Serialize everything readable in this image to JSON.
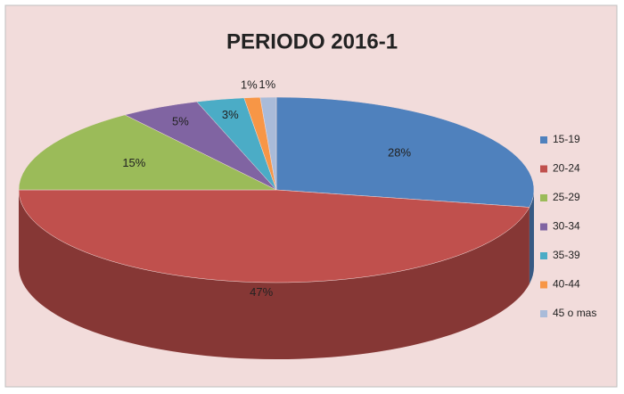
{
  "chart_data": {
    "type": "pie",
    "title": "PERIODO 2016-1",
    "categories": [
      "15-19",
      "20-24",
      "25-29",
      "30-34",
      "35-39",
      "40-44",
      "45 o mas"
    ],
    "values": [
      28,
      47,
      15,
      5,
      3,
      1,
      1
    ],
    "value_labels": [
      "28%",
      "47%",
      "15%",
      "5%",
      "3%",
      "1%",
      "1%"
    ],
    "colors": [
      "#4f81bd",
      "#c0504d",
      "#9bbb59",
      "#8064a2",
      "#4bacc6",
      "#f79646",
      "#a9bbd9"
    ],
    "legend": "right"
  }
}
